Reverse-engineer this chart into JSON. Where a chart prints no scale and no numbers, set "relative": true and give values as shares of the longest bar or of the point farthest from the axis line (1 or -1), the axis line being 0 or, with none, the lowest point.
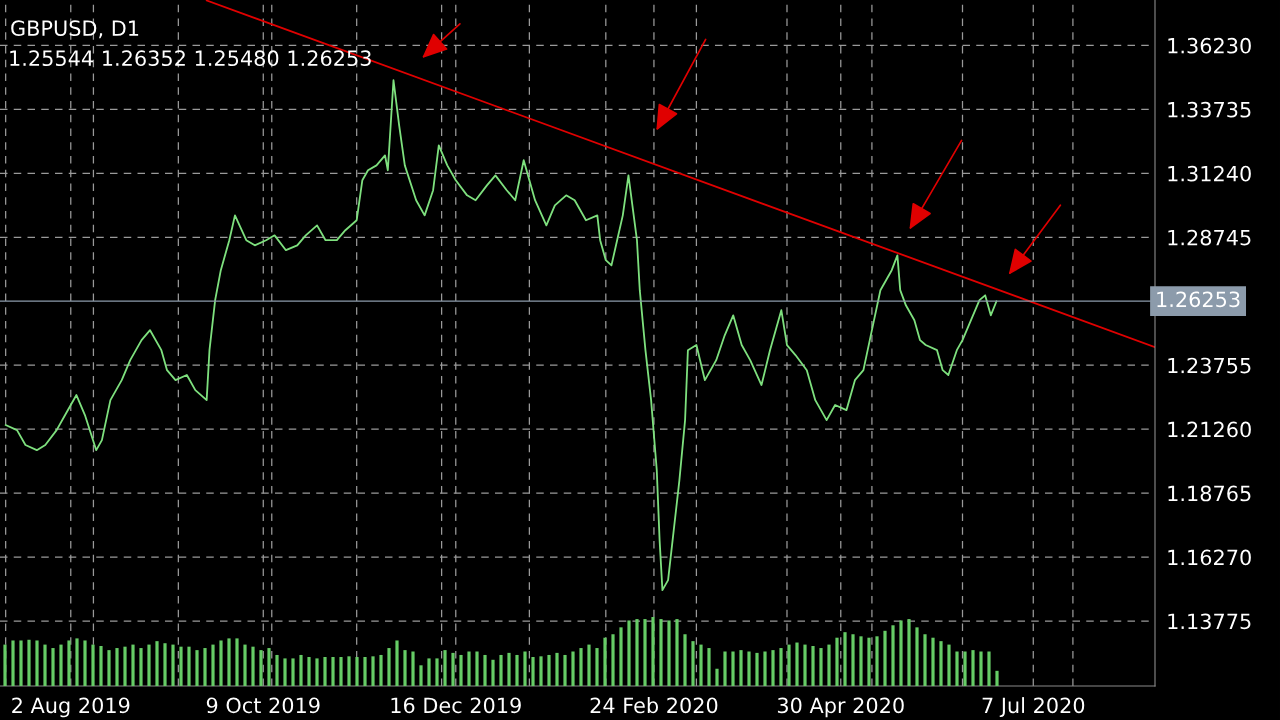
{
  "chart_data": [
    {
      "type": "line",
      "title": "GBPUSD, D1",
      "subtitle": "1.25544 1.26352 1.25480 1.26253",
      "x": [
        "2019-07-10",
        "2019-07-14",
        "2019-07-17",
        "2019-07-21",
        "2019-07-24",
        "2019-07-28",
        "2019-07-31",
        "2019-08-04",
        "2019-08-07",
        "2019-08-11",
        "2019-08-13",
        "2019-08-16",
        "2019-08-20",
        "2019-08-23",
        "2019-08-27",
        "2019-08-30",
        "2019-09-03",
        "2019-09-05",
        "2019-09-08",
        "2019-09-12",
        "2019-09-15",
        "2019-09-19",
        "2019-09-20",
        "2019-09-22",
        "2019-09-24",
        "2019-09-27",
        "2019-09-29",
        "2019-10-03",
        "2019-10-06",
        "2019-10-10",
        "2019-10-13",
        "2019-10-17",
        "2019-10-21",
        "2019-10-24",
        "2019-10-28",
        "2019-10-31",
        "2019-11-04",
        "2019-11-07",
        "2019-11-11",
        "2019-11-13",
        "2019-11-15",
        "2019-11-18",
        "2019-11-21",
        "2019-11-22",
        "2019-11-24",
        "2019-11-26",
        "2019-11-28",
        "2019-12-02",
        "2019-12-05",
        "2019-12-08",
        "2019-12-10",
        "2019-12-13",
        "2019-12-16",
        "2019-12-20",
        "2019-12-23",
        "2019-12-27",
        "2019-12-30",
        "2020-01-03",
        "2020-01-06",
        "2020-01-09",
        "2020-01-10",
        "2020-01-13",
        "2020-01-17",
        "2020-01-20",
        "2020-01-24",
        "2020-01-27",
        "2020-01-31",
        "2020-02-04",
        "2020-02-05",
        "2020-02-07",
        "2020-02-09",
        "2020-02-11",
        "2020-02-13",
        "2020-02-15",
        "2020-02-18",
        "2020-02-19",
        "2020-02-21",
        "2020-02-23",
        "2020-02-25",
        "2020-02-26",
        "2020-02-27",
        "2020-02-29",
        "2020-03-02",
        "2020-03-04",
        "2020-03-06",
        "2020-03-07",
        "2020-03-10",
        "2020-03-13",
        "2020-03-17",
        "2020-03-20",
        "2020-03-23",
        "2020-03-26",
        "2020-03-29",
        "2020-04-02",
        "2020-04-05",
        "2020-04-09",
        "2020-04-11",
        "2020-04-14",
        "2020-04-18",
        "2020-04-21",
        "2020-04-25",
        "2020-04-28",
        "2020-05-02",
        "2020-05-05",
        "2020-05-08",
        "2020-05-11",
        "2020-05-14",
        "2020-05-18",
        "2020-05-20",
        "2020-05-21",
        "2020-05-23",
        "2020-05-26",
        "2020-05-28",
        "2020-05-30",
        "2020-06-03",
        "2020-06-05",
        "2020-06-07",
        "2020-06-10",
        "2020-06-12",
        "2020-06-15",
        "2020-06-18",
        "2020-06-20",
        "2020-06-22",
        "2020-06-24"
      ],
      "series": [
        {
          "color": "#7ee07e",
          "values": [
            1.2142,
            1.2122,
            1.2064,
            1.2044,
            1.2064,
            1.2122,
            1.2181,
            1.2259,
            1.2181,
            1.2044,
            1.2083,
            1.2239,
            1.2317,
            1.2395,
            1.2473,
            1.2512,
            1.2434,
            1.2356,
            1.2317,
            1.2337,
            1.2278,
            1.2239,
            1.2434,
            1.2629,
            1.2746,
            1.2863,
            1.296,
            1.2863,
            1.2843,
            1.2863,
            1.2882,
            1.2824,
            1.2843,
            1.2882,
            1.2921,
            1.2863,
            1.2863,
            1.2902,
            1.2941,
            1.3097,
            1.3136,
            1.3155,
            1.3194,
            1.3136,
            1.3487,
            1.3311,
            1.3155,
            1.3019,
            1.296,
            1.3058,
            1.3233,
            1.3155,
            1.3097,
            1.3038,
            1.3019,
            1.3077,
            1.3116,
            1.3058,
            1.3019,
            1.3175,
            1.3136,
            1.3019,
            1.2921,
            1.2999,
            1.3038,
            1.3019,
            1.2941,
            1.296,
            1.2863,
            1.2785,
            1.2765,
            1.2863,
            1.296,
            1.3116,
            1.2863,
            1.2668,
            1.2434,
            1.2239,
            1.1966,
            1.1693,
            1.1498,
            1.1537,
            1.1732,
            1.1927,
            1.2161,
            1.2434,
            1.2454,
            1.2317,
            1.2395,
            1.2492,
            1.257,
            1.2454,
            1.2395,
            1.2298,
            1.2434,
            1.259,
            1.2454,
            1.2415,
            1.2356,
            1.2239,
            1.2161,
            1.222,
            1.22,
            1.2317,
            1.2356,
            1.2512,
            1.2668,
            1.2746,
            1.2804,
            1.2668,
            1.2609,
            1.2551,
            1.2473,
            1.2454,
            1.2434,
            1.2356,
            1.2337,
            1.2434,
            1.2473,
            1.2551,
            1.2629,
            1.2648,
            1.257,
            1.2625
          ]
        },
        {
          "type": "line",
          "color": "#e00000",
          "x": [
            "2019-09-19",
            "2020-08-19"
          ],
          "values": [
            1.3798,
            1.2446
          ]
        }
      ],
      "xlim": [
        "2019-07-08",
        "2020-08-19"
      ],
      "xticks": [
        {
          "value": "2019-07-10",
          "label": null
        },
        {
          "value": "2019-08-02",
          "label": "2 Aug 2019"
        },
        {
          "value": "2019-08-10",
          "label": null
        },
        {
          "value": "2019-09-09",
          "label": null
        },
        {
          "value": "2019-10-09",
          "label": "9 Oct 2019"
        },
        {
          "value": "2019-10-12",
          "label": null
        },
        {
          "value": "2019-11-11",
          "label": null
        },
        {
          "value": "2019-12-11",
          "label": null
        },
        {
          "value": "2019-12-16",
          "label": "16 Dec 2019"
        },
        {
          "value": "2020-01-11",
          "label": null
        },
        {
          "value": "2020-02-07",
          "label": null
        },
        {
          "value": "2020-02-24",
          "label": "24 Feb 2020"
        },
        {
          "value": "2020-03-10",
          "label": null
        },
        {
          "value": "2020-04-11",
          "label": null
        },
        {
          "value": "2020-04-30",
          "label": "30 Apr 2020"
        },
        {
          "value": "2020-05-11",
          "label": null
        },
        {
          "value": "2020-06-12",
          "label": null
        },
        {
          "value": "2020-07-07",
          "label": "7 Jul 2020"
        },
        {
          "value": "2020-07-21",
          "label": null
        }
      ],
      "ylim": [
        1.1124,
        1.38
      ],
      "yticks": [
        {
          "value": 1.13775,
          "label": "1.13775"
        },
        {
          "value": 1.1627,
          "label": "1.16270"
        },
        {
          "value": 1.18765,
          "label": "1.18765"
        },
        {
          "value": 1.2126,
          "label": "1.21260"
        },
        {
          "value": 1.23755,
          "label": "1.23755"
        },
        {
          "value": 1.28745,
          "label": "1.28745"
        },
        {
          "value": 1.3124,
          "label": "1.31240"
        },
        {
          "value": 1.33735,
          "label": "1.33735"
        },
        {
          "value": 1.3623,
          "label": "1.36230"
        }
      ],
      "ref_lines": [
        {
          "axis": "y",
          "value": 1.26253,
          "label": "1.26253",
          "color": "#8c9bab"
        }
      ],
      "grid": true
    },
    {
      "type": "bar",
      "relative": true,
      "tick_labels": false,
      "color": "#66cc66",
      "categories": [
        null,
        null,
        null,
        null,
        null,
        null,
        null,
        null,
        null,
        null,
        null,
        null,
        null,
        null,
        null,
        null,
        null,
        null,
        null,
        null,
        null,
        null,
        null,
        null,
        null,
        null,
        null,
        null,
        null,
        null,
        null,
        null,
        null,
        null,
        null,
        null,
        null,
        null,
        null,
        null,
        null,
        null,
        null,
        null,
        null,
        null,
        null,
        null,
        null,
        null,
        null,
        null,
        null,
        null,
        null,
        null,
        null,
        null,
        null,
        null,
        null,
        null,
        null,
        null,
        null,
        null,
        null,
        null,
        null,
        null,
        null,
        null,
        null,
        null,
        null,
        null,
        null,
        null,
        null,
        null,
        null,
        null,
        null,
        null,
        null,
        null,
        null,
        null,
        null,
        null,
        null,
        null,
        null,
        null,
        null,
        null,
        null,
        null,
        null,
        null,
        null,
        null,
        null,
        null,
        null,
        null,
        null,
        null,
        null,
        null,
        null,
        null,
        null,
        null,
        null,
        null,
        null,
        null,
        null,
        null,
        null,
        null,
        null,
        null,
        null
      ],
      "values": [
        0.6,
        0.66,
        0.66,
        0.67,
        0.66,
        0.6,
        0.55,
        0.6,
        0.66,
        0.69,
        0.66,
        0.6,
        0.58,
        0.52,
        0.55,
        0.57,
        0.6,
        0.55,
        0.6,
        0.65,
        0.62,
        0.6,
        0.57,
        0.57,
        0.52,
        0.55,
        0.6,
        0.66,
        0.69,
        0.69,
        0.6,
        0.57,
        0.52,
        0.55,
        0.45,
        0.4,
        0.4,
        0.45,
        0.42,
        0.4,
        0.42,
        0.42,
        0.42,
        0.43,
        0.42,
        0.42,
        0.43,
        0.45,
        0.55,
        0.66,
        0.52,
        0.5,
        0.3,
        0.4,
        0.4,
        0.52,
        0.48,
        0.45,
        0.5,
        0.5,
        0.45,
        0.38,
        0.45,
        0.48,
        0.45,
        0.5,
        0.42,
        0.43,
        0.45,
        0.48,
        0.45,
        0.5,
        0.55,
        0.6,
        0.55,
        0.7,
        0.75,
        0.85,
        0.95,
        0.97,
        0.97,
        1.0,
        0.97,
        0.95,
        0.97,
        0.75,
        0.65,
        0.6,
        0.55,
        0.25,
        0.5,
        0.5,
        0.52,
        0.5,
        0.48,
        0.5,
        0.52,
        0.55,
        0.6,
        0.63,
        0.6,
        0.58,
        0.55,
        0.6,
        0.7,
        0.78,
        0.75,
        0.72,
        0.7,
        0.72,
        0.8,
        0.88,
        0.95,
        0.97,
        0.85,
        0.75,
        0.7,
        0.65,
        0.6,
        0.5,
        0.5,
        0.52,
        0.5,
        0.5,
        0.22
      ]
    }
  ]
}
